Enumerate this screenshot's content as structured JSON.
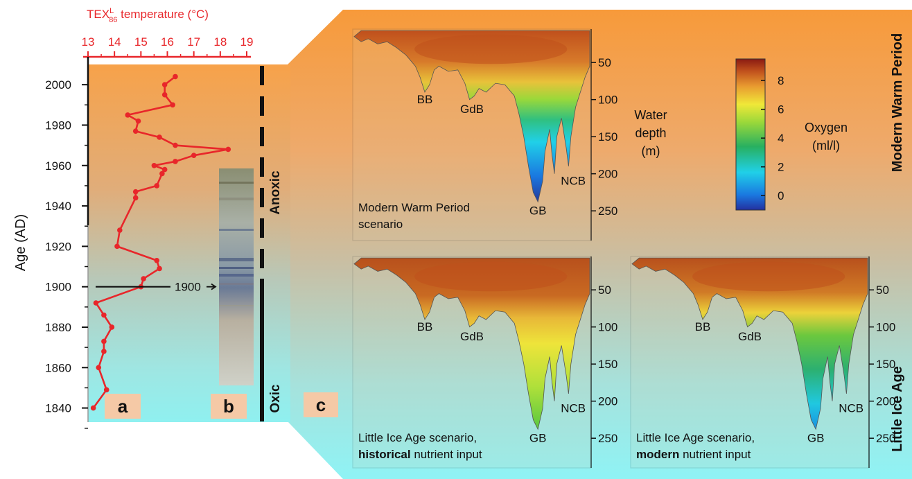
{
  "chart_data": [
    {
      "panel": "a",
      "type": "line",
      "top_axis_label": "TEX",
      "top_axis_label_sup": "L",
      "top_axis_label_sub": "86",
      "top_axis_label_rest": " temperature (°C)",
      "ylabel": "Age (AD)",
      "xlim": [
        13,
        19
      ],
      "ylim": [
        1833,
        2010
      ],
      "x_ticks": [
        13,
        14,
        15,
        16,
        17,
        18,
        19
      ],
      "y_ticks": [
        1840,
        1860,
        1880,
        1900,
        1920,
        1940,
        1960,
        1980,
        2000
      ],
      "color": "#e8262a",
      "series": [
        {
          "x": [
            16.3,
            15.9,
            15.9,
            16.2,
            14.5,
            14.9,
            14.8,
            15.7,
            16.3,
            18.3,
            17.0,
            16.3,
            15.5,
            15.9,
            15.8,
            15.6,
            14.8,
            14.8,
            14.2,
            14.1,
            15.6,
            15.7,
            15.1,
            15.0,
            13.3,
            13.6,
            13.9,
            13.6,
            13.6,
            13.4,
            13.7,
            13.2
          ],
          "y": [
            2004,
            2000,
            1995,
            1990,
            1985,
            1982,
            1977,
            1974,
            1970,
            1968,
            1965,
            1962,
            1960,
            1958,
            1956,
            1950,
            1947,
            1944,
            1928,
            1920,
            1913,
            1909,
            1904,
            1900,
            1892,
            1886,
            1880,
            1873,
            1868,
            1860,
            1849,
            1840
          ]
        }
      ],
      "annotation": "1900",
      "core_label": "b",
      "panel_label": "a",
      "redox_labels": [
        "Anoxic",
        "Oxic"
      ]
    },
    {
      "panel": "c",
      "type": "heatmap",
      "panel_label": "c",
      "row_labels": [
        "Modern Warm Period",
        "Little Ice Age"
      ],
      "depth_axis": {
        "label_lines": [
          "Water",
          "depth",
          "(m)"
        ],
        "ticks": [
          50,
          100,
          150,
          200,
          250
        ]
      },
      "colorbar": {
        "label_lines": [
          "Oxygen",
          "(ml/l)"
        ],
        "ticks": [
          0,
          2,
          4,
          6,
          8
        ],
        "range": [
          -1,
          9.5
        ]
      },
      "scenarios": [
        {
          "id": "modern",
          "caption_lines": [
            "Modern Warm Period",
            "scenario"
          ],
          "basins": [
            "BB",
            "GdB",
            "GB",
            "NCB"
          ]
        },
        {
          "id": "lia_historical",
          "caption_line1": "Little Ice Age scenario,",
          "caption_bold": "historical",
          "caption_rest": " nutrient input",
          "basins": [
            "BB",
            "GdB",
            "GB",
            "NCB"
          ]
        },
        {
          "id": "lia_modern",
          "caption_line1": "Little Ice Age scenario,",
          "caption_bold": "modern",
          "caption_rest": " nutrient input",
          "basins": [
            "BB",
            "GdB",
            "GB",
            "NCB"
          ]
        }
      ]
    }
  ]
}
